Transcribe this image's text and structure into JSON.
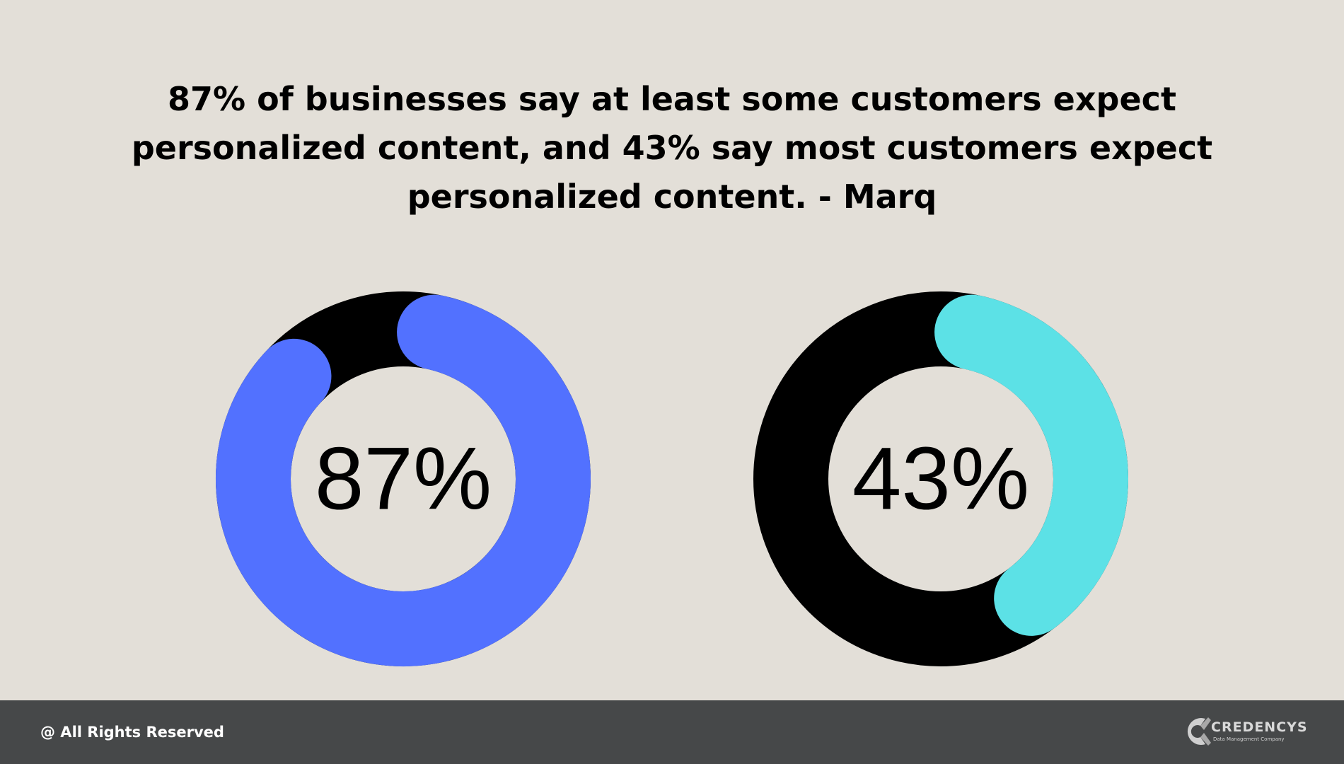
{
  "headline": {
    "line1": "87% of businesses say at least some customers expect",
    "line2": "personalized content, and 43% say most customers expect",
    "line3": "personalized content. - Marq"
  },
  "chart_data": [
    {
      "type": "pie",
      "variant": "donut",
      "label": "87%",
      "value": 87,
      "total": 100,
      "colors": {
        "value": "#5271ff",
        "remainder": "#000000"
      }
    },
    {
      "type": "pie",
      "variant": "donut",
      "label": "43%",
      "value": 43,
      "total": 100,
      "colors": {
        "value": "#5ce1e6",
        "remainder": "#000000"
      }
    }
  ],
  "footer": {
    "copyright": "@ All Rights Reserved",
    "brand_name": "CREDENCYS",
    "brand_tagline": "Data Management Company",
    "brand_icon": "credencys-logo-icon"
  },
  "colors": {
    "background": "#e3dfd8",
    "footer": "#464849",
    "text": "#000000"
  }
}
